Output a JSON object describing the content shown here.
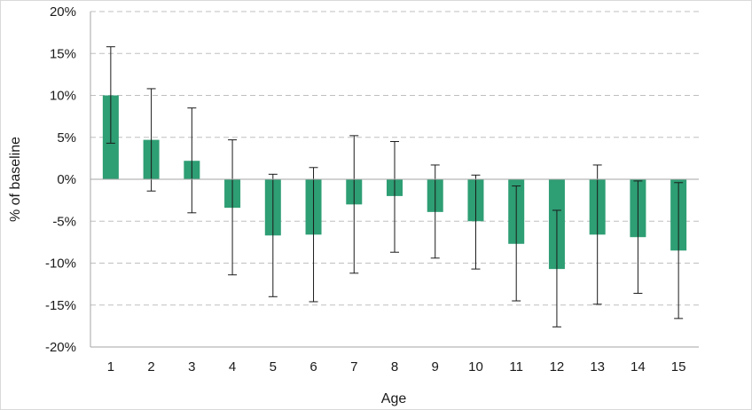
{
  "chart_data": {
    "type": "bar",
    "title": "",
    "xlabel": "Age",
    "ylabel": "% of baseline",
    "categories": [
      "1",
      "2",
      "3",
      "4",
      "5",
      "6",
      "7",
      "8",
      "9",
      "10",
      "11",
      "12",
      "13",
      "14",
      "15"
    ],
    "series": [
      {
        "values": [
          10.0,
          4.7,
          2.2,
          -3.4,
          -6.7,
          -6.6,
          -3.0,
          -2.0,
          -3.9,
          -5.0,
          -7.7,
          -10.7,
          -6.6,
          -6.9,
          -8.5
        ],
        "error_low": [
          4.3,
          -1.4,
          -4.0,
          -11.4,
          -14.0,
          -14.6,
          -11.2,
          -8.7,
          -9.4,
          -10.7,
          -14.5,
          -17.6,
          -14.9,
          -13.6,
          -16.6
        ],
        "error_high": [
          15.8,
          10.8,
          8.5,
          4.7,
          0.6,
          1.4,
          5.2,
          4.5,
          1.7,
          0.5,
          -0.8,
          -3.7,
          1.7,
          -0.2,
          -0.4
        ]
      }
    ],
    "ylim": [
      -20,
      20
    ],
    "yticks": [
      20,
      15,
      10,
      5,
      0,
      -5,
      -10,
      -15,
      -20
    ],
    "ytick_labels": [
      "20%",
      "15%",
      "10%",
      "5%",
      "0%",
      "-5%",
      "-10%",
      "-15%",
      "-20%"
    ],
    "grid": true,
    "legend": "none",
    "colors": {
      "bar": "#2e9e74",
      "error_bar": "#1a1a1a",
      "grid": "#bfbfbf",
      "axis": "#a6a6a6"
    }
  }
}
